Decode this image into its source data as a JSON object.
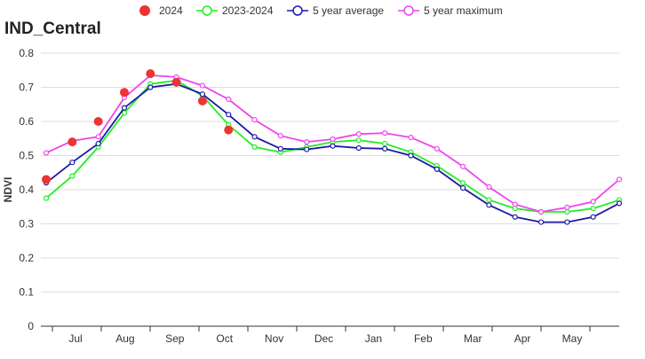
{
  "chart_data": {
    "type": "line",
    "title": "IND_Central",
    "ylabel": "NDVI",
    "xlabel": "",
    "ylim": [
      0,
      0.8
    ],
    "yticks": [
      "0",
      "0.1",
      "0.2",
      "0.3",
      "0.4",
      "0.5",
      "0.6",
      "0.7",
      "0.8"
    ],
    "grid": true,
    "legend_position": "top",
    "month_labels": [
      "Jul",
      "Aug",
      "Sep",
      "Oct",
      "Nov",
      "Dec",
      "Jan",
      "Feb",
      "Mar",
      "Apr",
      "May"
    ],
    "series": [
      {
        "name": "2024",
        "color": "#ee3333",
        "style": "dots",
        "values": [
          0.43,
          0.54,
          0.6,
          0.685,
          0.74,
          0.715,
          0.66,
          0.575
        ]
      },
      {
        "name": "2023-2024",
        "color": "#22ee22",
        "style": "line",
        "values": [
          0.375,
          0.44,
          0.525,
          0.625,
          0.71,
          0.72,
          0.675,
          0.59,
          0.525,
          0.51,
          0.525,
          0.54,
          0.545,
          0.535,
          0.51,
          0.47,
          0.42,
          0.37,
          0.345,
          0.335,
          0.335,
          0.345,
          0.37
        ]
      },
      {
        "name": "5 year average",
        "color": "#1a1aa6",
        "style": "line",
        "values": [
          0.42,
          0.48,
          0.535,
          0.64,
          0.7,
          0.71,
          0.68,
          0.62,
          0.555,
          0.52,
          0.518,
          0.528,
          0.522,
          0.52,
          0.5,
          0.46,
          0.405,
          0.355,
          0.32,
          0.305,
          0.305,
          0.32,
          0.36
        ]
      },
      {
        "name": "5 year maximum",
        "color": "#ee44ee",
        "style": "line",
        "values": [
          0.508,
          0.543,
          0.555,
          0.67,
          0.735,
          0.73,
          0.705,
          0.665,
          0.605,
          0.558,
          0.54,
          0.548,
          0.563,
          0.566,
          0.553,
          0.52,
          0.468,
          0.408,
          0.357,
          0.335,
          0.348,
          0.365,
          0.43
        ]
      }
    ]
  }
}
